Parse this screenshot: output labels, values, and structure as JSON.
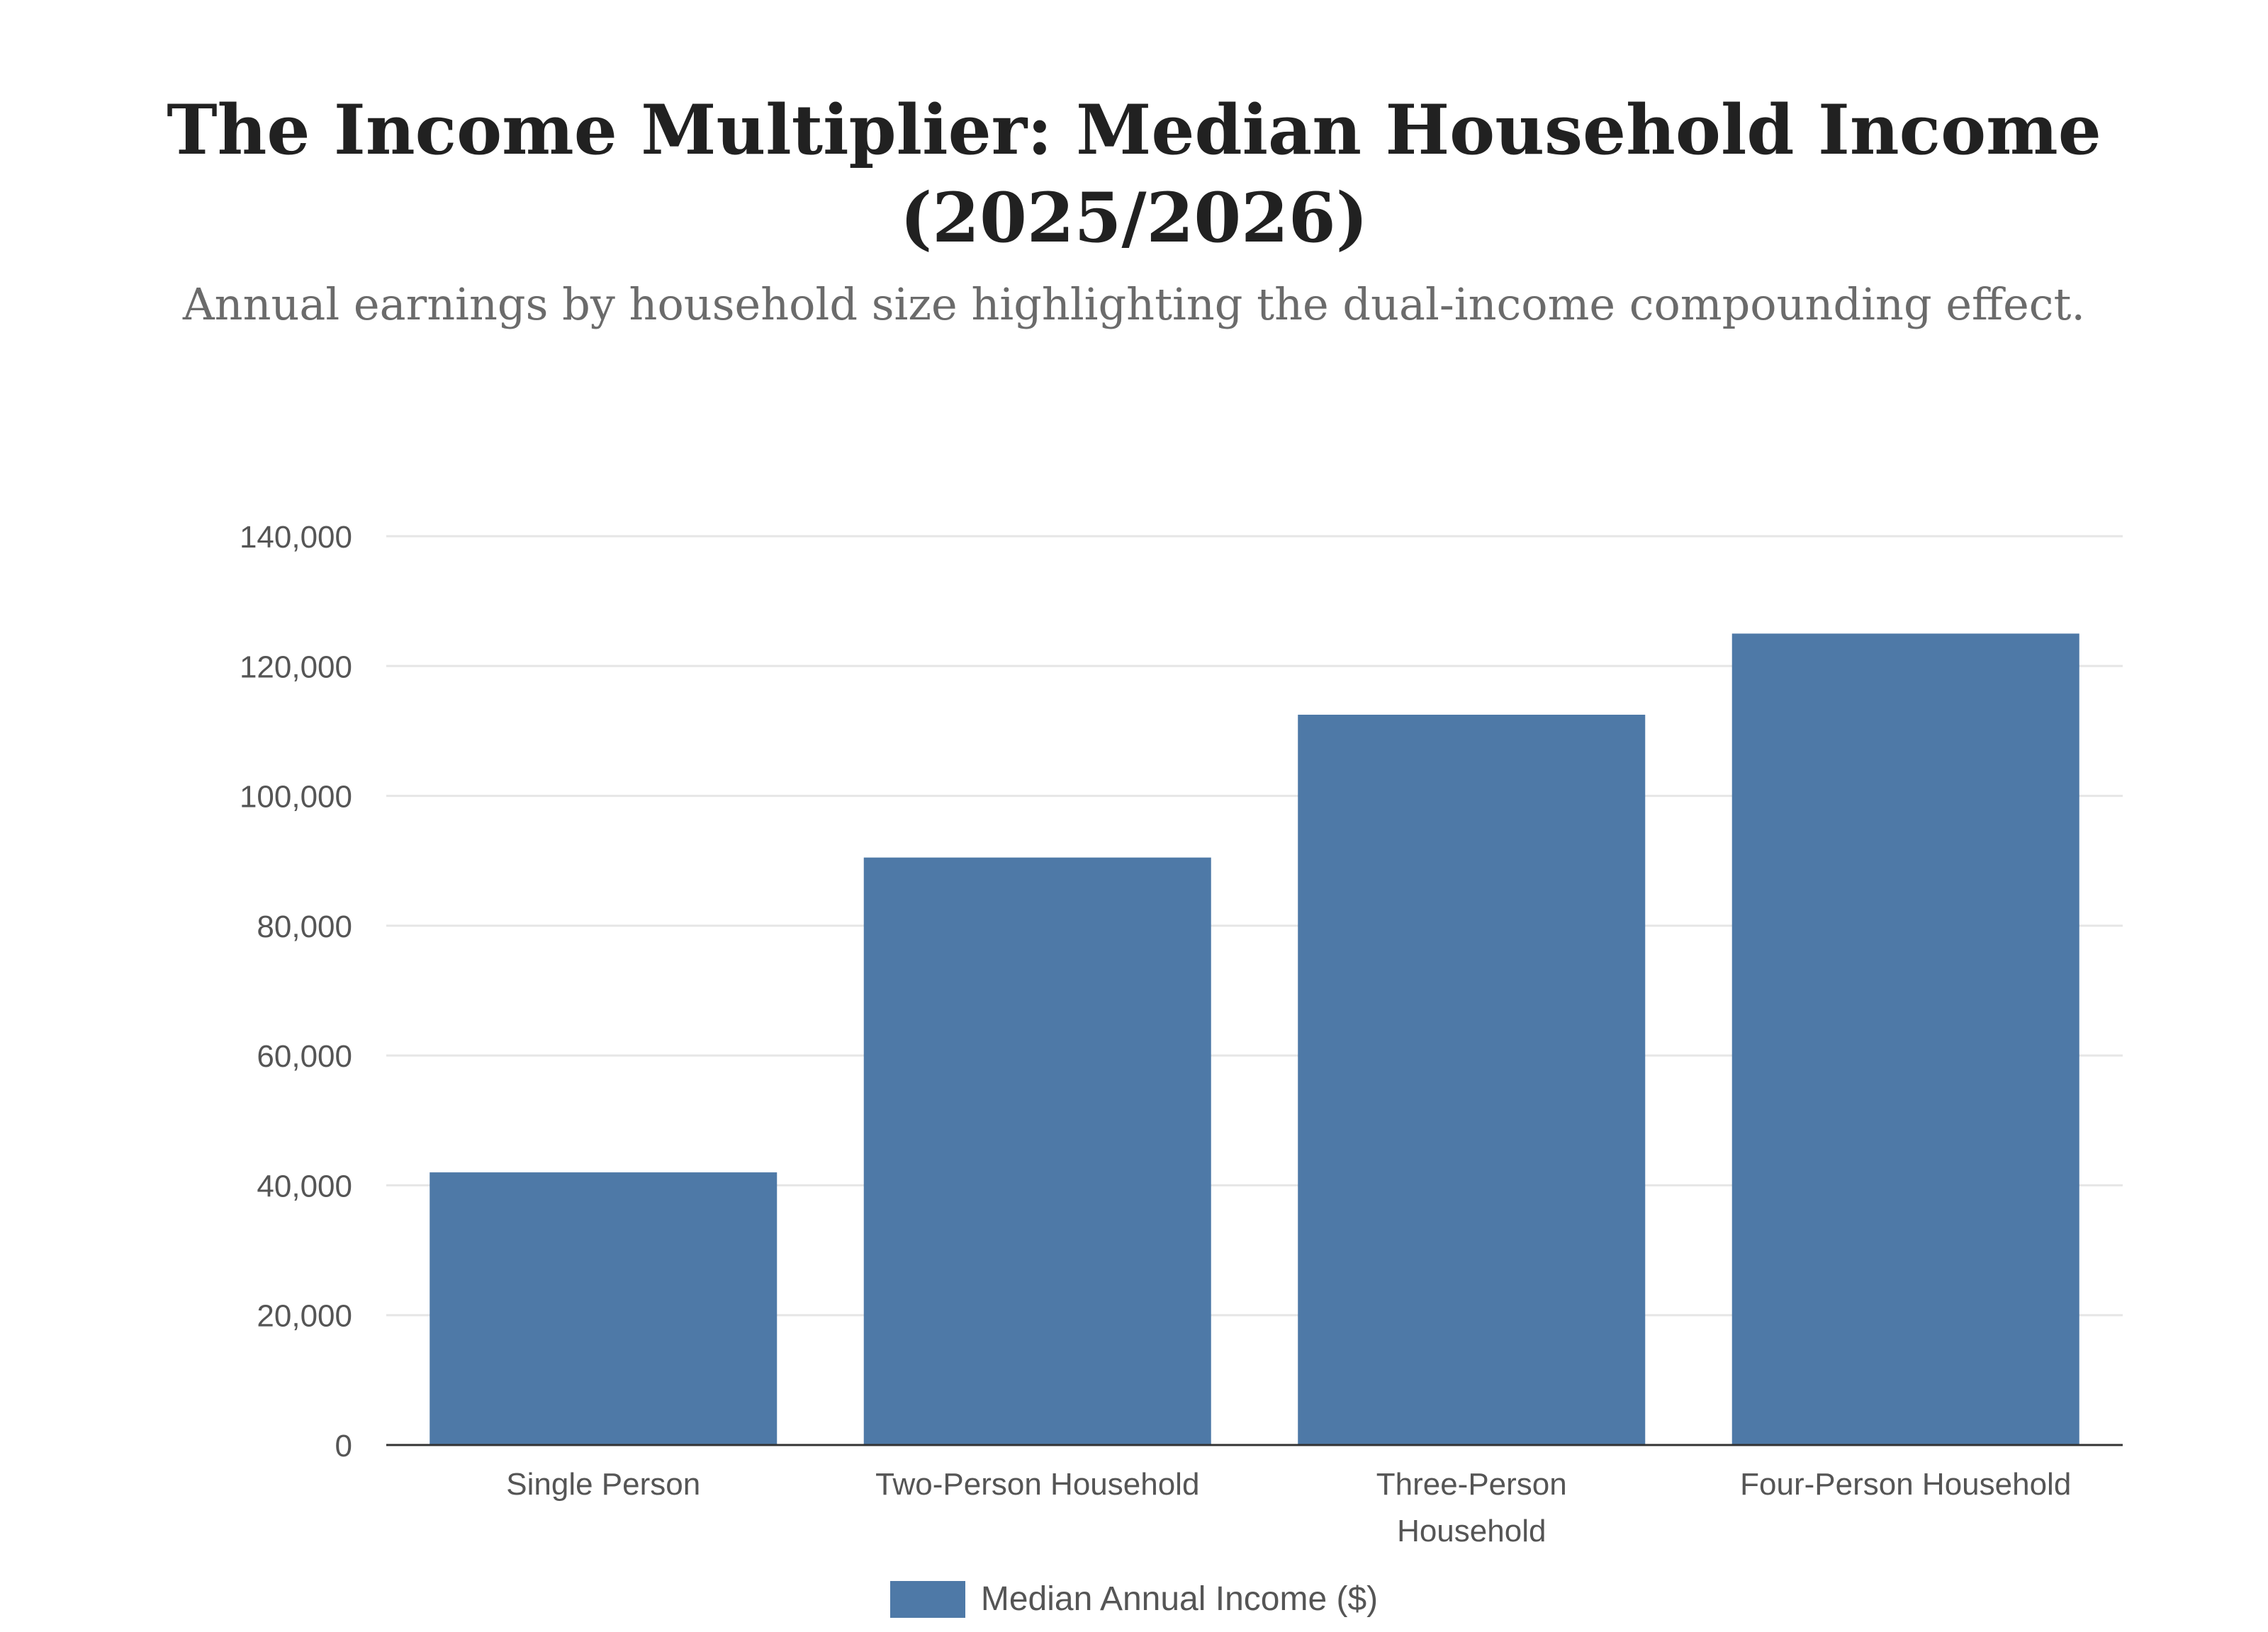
{
  "title": "The Income Multiplier: Median Household Income (2025/2026)",
  "subtitle": "Annual earnings by household size highlighting the dual-income compounding effect.",
  "colors": {
    "bar": "#4e79a7",
    "grid": "#e6e6e6",
    "axis": "#333333",
    "tick_text": "#555555",
    "title": "#212121",
    "subtitle": "#6b6b6b"
  },
  "chart_data": {
    "type": "bar",
    "categories": [
      [
        "Single Person"
      ],
      [
        "Two-Person Household"
      ],
      [
        "Three-Person",
        "Household"
      ],
      [
        "Four-Person Household"
      ]
    ],
    "series": [
      {
        "name": "Median Annual Income ($)",
        "values": [
          42000,
          90500,
          112500,
          125000
        ]
      }
    ],
    "ylim": [
      0,
      140000
    ],
    "yticks": [
      0,
      20000,
      40000,
      60000,
      80000,
      100000,
      120000,
      140000
    ],
    "ytick_labels": [
      "0",
      "20,000",
      "40,000",
      "60,000",
      "80,000",
      "100,000",
      "120,000",
      "140,000"
    ],
    "grid": true,
    "legend_position": "bottom-center"
  }
}
